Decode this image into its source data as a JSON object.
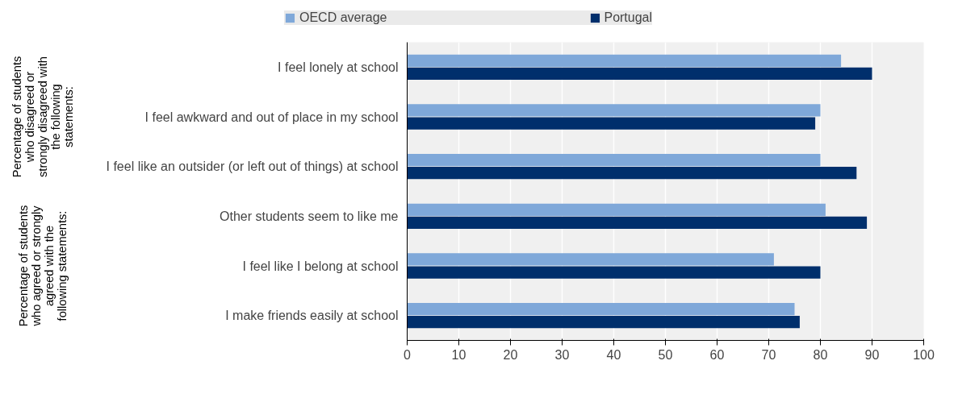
{
  "chart_data": {
    "type": "bar",
    "orientation": "horizontal",
    "categories": [
      "I feel lonely at school",
      "I feel awkward and out of place in my school",
      "I feel like an outsider (or left out of things) at school",
      "Other students seem to like me",
      "I feel like I belong at school",
      "I make friends easily at school"
    ],
    "series": [
      {
        "name": "OECD average",
        "color": "#7fa8d9",
        "values": [
          84,
          80,
          80,
          81,
          71,
          75
        ]
      },
      {
        "name": "Portugal",
        "color": "#002f6c",
        "values": [
          90,
          79,
          87,
          89,
          80,
          76
        ]
      }
    ],
    "xlim": [
      0,
      100
    ],
    "xticks": [
      0,
      10,
      20,
      30,
      40,
      50,
      60,
      70,
      80,
      90,
      100
    ],
    "grid": "x",
    "legend": "top",
    "annotations": [
      "Percentage of students who disagreed or strongly disagreed with the following statements:",
      "Percentage of students who agreed or strongly agreed with the following statements:"
    ]
  }
}
